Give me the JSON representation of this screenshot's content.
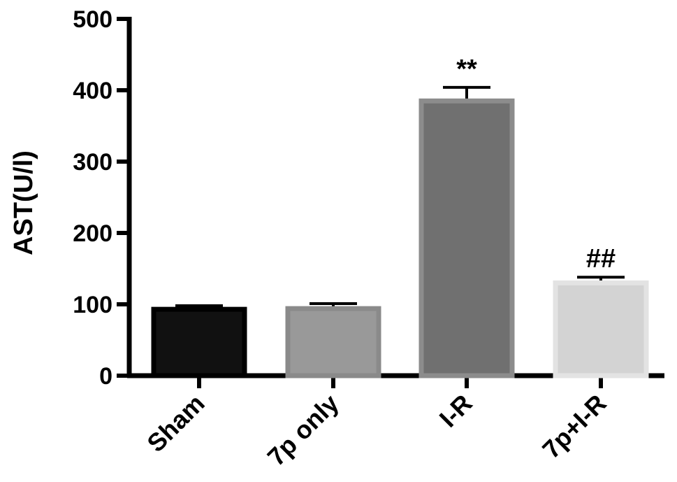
{
  "chart_data": {
    "type": "bar",
    "ylabel": "AST(U/l)",
    "xlabel": "",
    "ylim": [
      0,
      500
    ],
    "yticks": [
      0,
      100,
      200,
      300,
      400,
      500
    ],
    "categories": [
      "Sham",
      "7p only",
      "I-R",
      "7p+I-R"
    ],
    "values": [
      93,
      94,
      385,
      130
    ],
    "errors": [
      5,
      7,
      19,
      8
    ],
    "annotations": [
      "",
      "",
      "**",
      "##"
    ],
    "bar_fill_colors": [
      "#111111",
      "#999999",
      "#707070",
      "#d3d3d3"
    ],
    "bar_edge_colors": [
      "#000000",
      "#8a8a8a",
      "#8c8c8c",
      "#e3e3e3"
    ]
  }
}
